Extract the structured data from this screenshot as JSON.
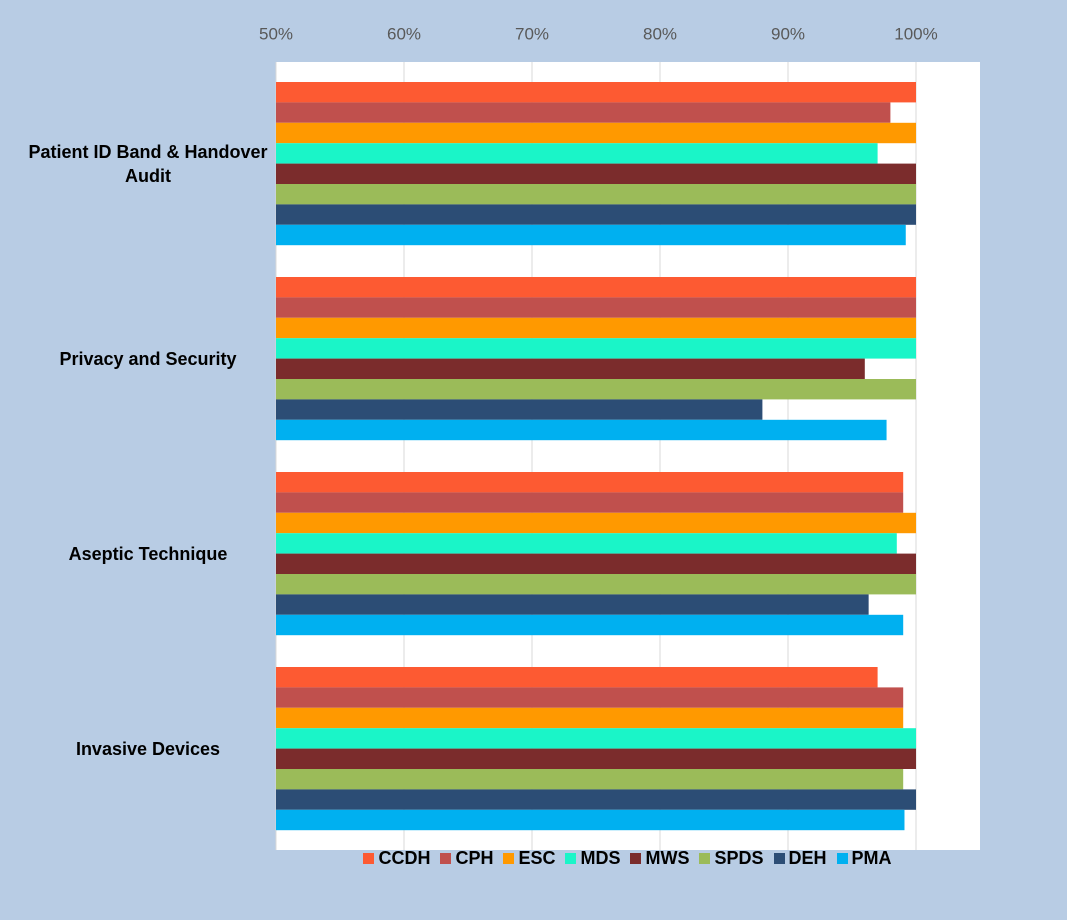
{
  "chart_data": {
    "type": "hbar",
    "categories": [
      "Patient ID Band & Handover Audit",
      "Privacy and Security",
      "Aseptic Technique",
      "Invasive Devices"
    ],
    "series": [
      {
        "name": "CCDH",
        "color": "#fd5a32",
        "values": [
          100,
          100,
          99,
          97
        ]
      },
      {
        "name": "CPH",
        "color": "#c0504d",
        "values": [
          98,
          100,
          99,
          99
        ]
      },
      {
        "name": "ESC",
        "color": "#ff9900",
        "values": [
          100,
          100,
          100,
          99
        ]
      },
      {
        "name": "MDS",
        "color": "#1af5c8",
        "values": [
          97,
          100,
          98.5,
          100
        ]
      },
      {
        "name": "MWS",
        "color": "#7b2c2c",
        "values": [
          100,
          96,
          100,
          100
        ]
      },
      {
        "name": "SPDS",
        "color": "#9bbb59",
        "values": [
          100,
          100,
          100,
          99
        ]
      },
      {
        "name": "DEH",
        "color": "#2c4d75",
        "values": [
          100,
          88,
          96.3,
          100
        ]
      },
      {
        "name": "PMA",
        "color": "#00b0f0",
        "values": [
          99.2,
          97.7,
          99,
          99.1
        ]
      }
    ],
    "xlim": [
      50,
      105
    ],
    "xticks": [
      {
        "value": 50,
        "label": "50%"
      },
      {
        "value": 60,
        "label": "60%"
      },
      {
        "value": 70,
        "label": "70%"
      },
      {
        "value": 80,
        "label": "80%"
      },
      {
        "value": 90,
        "label": "90%"
      },
      {
        "value": 100,
        "label": "100%"
      }
    ],
    "grid": true,
    "legend": "bottom"
  }
}
